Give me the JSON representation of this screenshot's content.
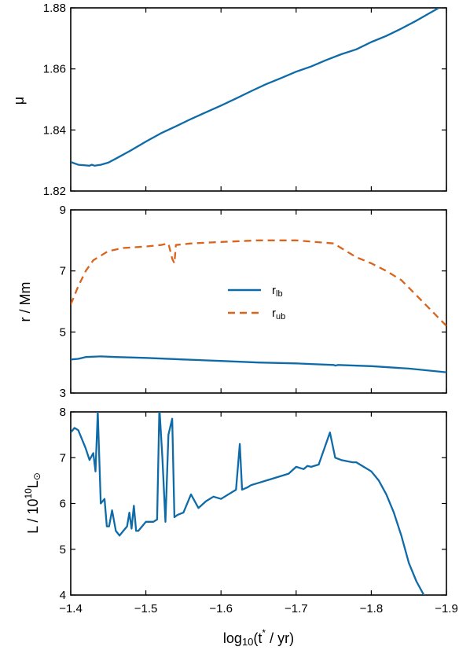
{
  "chart_data": [
    {
      "type": "line",
      "ylabel": "μ",
      "xlim": [
        -1.4,
        -1.9
      ],
      "ylim": [
        1.82,
        1.88
      ],
      "xticks": [
        -1.4,
        -1.5,
        -1.6,
        -1.7,
        -1.8,
        -1.9
      ],
      "yticks": [
        1.82,
        1.84,
        1.86,
        1.88
      ],
      "ytick_labels": [
        "1.82",
        "1.84",
        "1.86",
        "1.88"
      ],
      "series": [
        {
          "color": "#0f6ba8",
          "style": "solid",
          "x": [
            -1.4,
            -1.41,
            -1.42,
            -1.425,
            -1.428,
            -1.432,
            -1.44,
            -1.45,
            -1.46,
            -1.48,
            -1.5,
            -1.52,
            -1.54,
            -1.56,
            -1.58,
            -1.6,
            -1.62,
            -1.64,
            -1.66,
            -1.68,
            -1.7,
            -1.72,
            -1.74,
            -1.76,
            -1.78,
            -1.8,
            -1.82,
            -1.84,
            -1.86,
            -1.88,
            -1.89
          ],
          "y": [
            1.8295,
            1.8286,
            1.8284,
            1.8283,
            1.8286,
            1.8283,
            1.8286,
            1.8293,
            1.8306,
            1.8333,
            1.8362,
            1.8389,
            1.8412,
            1.8436,
            1.8458,
            1.848,
            1.8503,
            1.8527,
            1.855,
            1.857,
            1.8591,
            1.8608,
            1.8629,
            1.8648,
            1.8664,
            1.8688,
            1.8708,
            1.8732,
            1.8758,
            1.8786,
            1.88
          ]
        }
      ]
    },
    {
      "type": "line",
      "ylabel": "r / Mm",
      "xlim": [
        -1.4,
        -1.9
      ],
      "ylim": [
        3,
        9
      ],
      "xticks": [
        -1.4,
        -1.5,
        -1.6,
        -1.7,
        -1.8,
        -1.9
      ],
      "yticks": [
        3,
        5,
        7,
        9
      ],
      "ytick_labels": [
        "3",
        "5",
        "7",
        "9"
      ],
      "legend": {
        "position": "center"
      },
      "series": [
        {
          "name": "r",
          "name_sub": "lb",
          "color": "#0f6ba8",
          "style": "solid",
          "x": [
            -1.4,
            -1.41,
            -1.42,
            -1.44,
            -1.46,
            -1.5,
            -1.55,
            -1.6,
            -1.65,
            -1.7,
            -1.75,
            -1.752,
            -1.756,
            -1.8,
            -1.85,
            -1.9
          ],
          "y": [
            4.1,
            4.12,
            4.18,
            4.2,
            4.18,
            4.15,
            4.1,
            4.05,
            4.0,
            3.97,
            3.92,
            3.9,
            3.92,
            3.88,
            3.8,
            3.68
          ]
        },
        {
          "name": "r",
          "name_sub": "ub",
          "color": "#d9641c",
          "style": "dashed",
          "x": [
            -1.4,
            -1.41,
            -1.42,
            -1.43,
            -1.45,
            -1.47,
            -1.5,
            -1.52,
            -1.53,
            -1.535,
            -1.538,
            -1.54,
            -1.56,
            -1.6,
            -1.65,
            -1.7,
            -1.75,
            -1.77,
            -1.78,
            -1.8,
            -1.82,
            -1.84,
            -1.85,
            -1.86,
            -1.87,
            -1.88,
            -1.9
          ],
          "y": [
            5.9,
            6.5,
            7.0,
            7.35,
            7.65,
            7.75,
            7.8,
            7.85,
            7.9,
            7.4,
            7.25,
            7.85,
            7.9,
            7.95,
            8.0,
            8.0,
            7.9,
            7.6,
            7.45,
            7.25,
            7.0,
            6.7,
            6.45,
            6.2,
            5.95,
            5.7,
            5.2
          ]
        }
      ]
    },
    {
      "type": "line",
      "xlabel": "log",
      "xlabel_sub": "10",
      "xlabel_tail": "(t",
      "xlabel_sup": "*",
      "xlabel_end": " / yr)",
      "ylabel": "L / 10",
      "ylabel_sup": "10",
      "ylabel_end": "L",
      "ylabel_sub": "⊙",
      "xlim": [
        -1.4,
        -1.9
      ],
      "ylim": [
        4,
        8
      ],
      "xticks": [
        -1.4,
        -1.5,
        -1.6,
        -1.7,
        -1.8,
        -1.9
      ],
      "xtick_labels": [
        "−1.4",
        "−1.5",
        "−1.6",
        "−1.7",
        "−1.8",
        "−1.9"
      ],
      "yticks": [
        4,
        5,
        6,
        7,
        8
      ],
      "ytick_labels": [
        "4",
        "5",
        "6",
        "7",
        "8"
      ],
      "series": [
        {
          "color": "#0f6ba8",
          "style": "solid",
          "x": [
            -1.4,
            -1.405,
            -1.41,
            -1.42,
            -1.425,
            -1.43,
            -1.433,
            -1.436,
            -1.438,
            -1.44,
            -1.445,
            -1.448,
            -1.451,
            -1.455,
            -1.46,
            -1.465,
            -1.47,
            -1.475,
            -1.478,
            -1.481,
            -1.484,
            -1.487,
            -1.49,
            -1.495,
            -1.5,
            -1.51,
            -1.515,
            -1.518,
            -1.522,
            -1.526,
            -1.53,
            -1.535,
            -1.538,
            -1.542,
            -1.55,
            -1.56,
            -1.57,
            -1.58,
            -1.59,
            -1.6,
            -1.62,
            -1.625,
            -1.628,
            -1.635,
            -1.64,
            -1.65,
            -1.66,
            -1.67,
            -1.69,
            -1.7,
            -1.71,
            -1.715,
            -1.72,
            -1.73,
            -1.745,
            -1.752,
            -1.76,
            -1.775,
            -1.78,
            -1.79,
            -1.8,
            -1.81,
            -1.82,
            -1.83,
            -1.84,
            -1.85,
            -1.86,
            -1.87,
            -1.88,
            -1.885
          ],
          "y": [
            7.55,
            7.65,
            7.6,
            7.2,
            6.95,
            7.1,
            6.7,
            8.0,
            7.0,
            6.0,
            6.1,
            5.5,
            5.5,
            5.85,
            5.4,
            5.3,
            5.4,
            5.5,
            5.8,
            5.45,
            5.95,
            5.4,
            5.4,
            5.5,
            5.6,
            5.6,
            5.65,
            8.1,
            7.0,
            5.6,
            7.5,
            7.85,
            5.7,
            5.75,
            5.8,
            6.2,
            5.9,
            6.05,
            6.15,
            6.1,
            6.3,
            7.3,
            6.3,
            6.35,
            6.4,
            6.45,
            6.5,
            6.55,
            6.65,
            6.8,
            6.75,
            6.82,
            6.8,
            6.85,
            7.55,
            7.0,
            6.95,
            6.9,
            6.9,
            6.8,
            6.7,
            6.5,
            6.2,
            5.8,
            5.3,
            4.7,
            4.3,
            4.0,
            3.7,
            3.5
          ]
        }
      ]
    }
  ]
}
